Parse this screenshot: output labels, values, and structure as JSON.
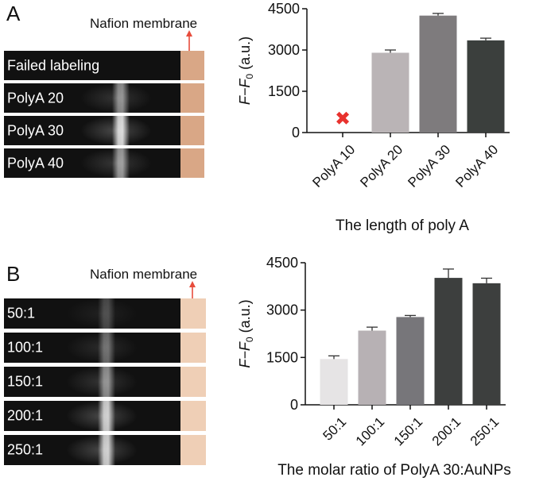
{
  "panelA": {
    "letter": "A",
    "membrane_label": "Nafion membrane",
    "strips": [
      {
        "label": "Failed labeling",
        "intensity": 0
      },
      {
        "label": "PolyA 20",
        "intensity": 0.55
      },
      {
        "label": "PolyA 30",
        "intensity": 0.9
      },
      {
        "label": "PolyA 40",
        "intensity": 0.6
      }
    ]
  },
  "panelB": {
    "letter": "B",
    "membrane_label": "Nafion membrane",
    "strips": [
      {
        "label": "50:1",
        "intensity": 0.25
      },
      {
        "label": "100:1",
        "intensity": 0.4
      },
      {
        "label": "150:1",
        "intensity": 0.55
      },
      {
        "label": "200:1",
        "intensity": 0.85
      },
      {
        "label": "250:1",
        "intensity": 0.85
      }
    ]
  },
  "chart_data": [
    {
      "type": "bar",
      "categories": [
        "PolyA 10",
        "PolyA 20",
        "PolyA 30",
        "PolyA 40"
      ],
      "values": [
        null,
        2900,
        4250,
        3350
      ],
      "errors": [
        0,
        100,
        80,
        80
      ],
      "failed_marker": {
        "category": "PolyA 10",
        "value": 500,
        "symbol": "✖",
        "color": "#e8322e"
      },
      "colors": [
        "#ffffff",
        "#bab4b6",
        "#7e7b7d",
        "#3b3f3d"
      ],
      "title": "",
      "xlabel": "The length of poly A",
      "ylabel_main": "F",
      "ylabel_dash": "−F",
      "ylabel_sub": "0",
      "ylabel_unit": " (a.u.)",
      "ylim": [
        0,
        4500
      ],
      "yticks": [
        "0",
        "1500",
        "3000",
        "4500"
      ]
    },
    {
      "type": "bar",
      "categories": [
        "50:1",
        "100:1",
        "150:1",
        "200:1",
        "250:1"
      ],
      "values": [
        1450,
        2350,
        2780,
        4020,
        3850
      ],
      "errors": [
        100,
        110,
        50,
        280,
        160
      ],
      "colors": [
        "#e6e4e5",
        "#b7b1b4",
        "#77767a",
        "#3d3f3e",
        "#3d3f3e"
      ],
      "title": "",
      "xlabel": "The molar ratio of PolyA 30:AuNPs",
      "ylabel_main": "F",
      "ylabel_dash": "−F",
      "ylabel_sub": "0",
      "ylabel_unit": " (a.u.)",
      "ylim": [
        0,
        4500
      ],
      "yticks": [
        "0",
        "1500",
        "3000",
        "4500"
      ]
    }
  ]
}
